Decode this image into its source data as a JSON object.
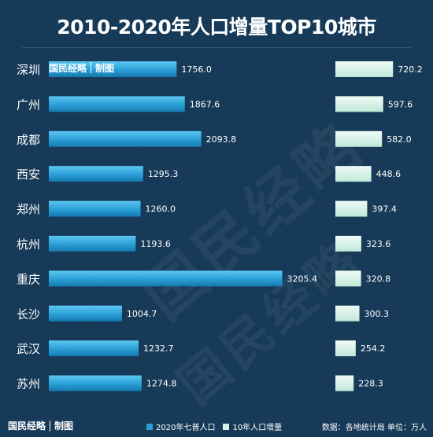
{
  "chart_data": {
    "type": "bar",
    "title": "2010-2020年人口增量TOP10城市",
    "categories": [
      "深圳",
      "广州",
      "成都",
      "西安",
      "郑州",
      "杭州",
      "重庆",
      "长沙",
      "武汉",
      "苏州"
    ],
    "series": [
      {
        "name": "2020年七普人口",
        "values": [
          1756.0,
          1867.6,
          2093.8,
          1295.3,
          1260.0,
          1193.6,
          3205.4,
          1004.7,
          1232.7,
          1274.8
        ],
        "labels": [
          "1756.0",
          "1867.6",
          "2093.8",
          "1295.3",
          "1260.0",
          "1193.6",
          "3205.4",
          "1004.7",
          "1232.7",
          "1274.8"
        ],
        "color": "#2a9fd6"
      },
      {
        "name": "10年人口增量",
        "values": [
          720.2,
          597.6,
          582.0,
          448.6,
          397.4,
          323.6,
          320.8,
          300.3,
          254.2,
          228.3
        ],
        "labels": [
          "720.2",
          "597.6",
          "582.0",
          "448.6",
          "397.4",
          "323.6",
          "320.8",
          "300.3",
          "254.2",
          "228.3"
        ],
        "color": "#d6f2e8"
      }
    ],
    "orientation": "horizontal",
    "legend_position": "bottom"
  },
  "brand": {
    "name": "国民经略",
    "suffix": "制图",
    "watermark": "国民经略"
  },
  "source_text": "数据：各地统计局 单位：万人"
}
